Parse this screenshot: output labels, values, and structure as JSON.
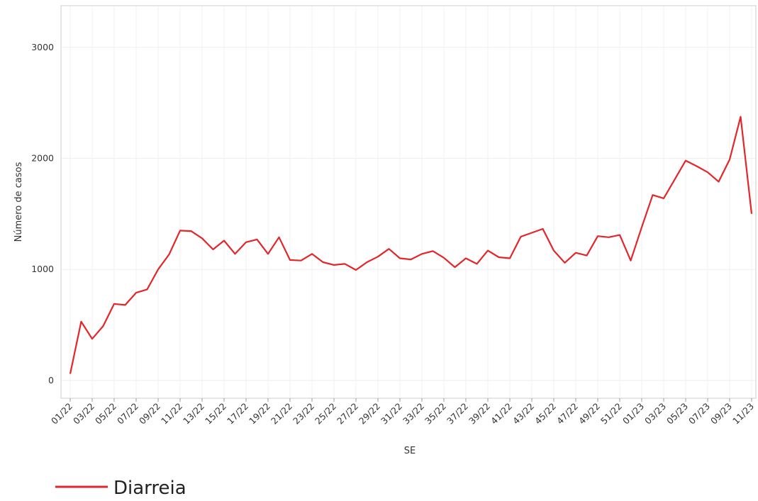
{
  "chart_data": {
    "type": "line",
    "categories": [
      "01/22",
      null,
      "03/22",
      null,
      "05/22",
      null,
      "07/22",
      null,
      "09/22",
      null,
      "11/22",
      null,
      "13/22",
      null,
      "15/22",
      null,
      "17/22",
      null,
      "19/22",
      null,
      "21/22",
      null,
      "23/22",
      null,
      "25/22",
      null,
      "27/22",
      null,
      "29/22",
      null,
      "31/22",
      null,
      "33/22",
      null,
      "35/22",
      null,
      "37/22",
      null,
      "39/22",
      null,
      "41/22",
      null,
      "43/22",
      null,
      "45/22",
      null,
      "47/22",
      null,
      "49/22",
      null,
      "51/22",
      null,
      "01/23",
      null,
      "03/23",
      null,
      "05/23",
      null,
      "07/23",
      null,
      "09/23",
      null,
      "11/23"
    ],
    "series": [
      {
        "name": "Diarreia",
        "color": "#e3262a",
        "values": [
          60,
          530,
          375,
          490,
          690,
          680,
          790,
          820,
          1000,
          1135,
          1350,
          1345,
          1280,
          1180,
          1260,
          1140,
          1245,
          1270,
          1140,
          1290,
          1085,
          1080,
          1140,
          1065,
          1040,
          1050,
          995,
          1065,
          1115,
          1185,
          1100,
          1090,
          1140,
          1165,
          1105,
          1020,
          1100,
          1050,
          1170,
          1110,
          1100,
          1295,
          1330,
          1365,
          1170,
          1060,
          1150,
          1125,
          1300,
          1290,
          1310,
          1080,
          1380,
          1670,
          1640,
          1810,
          1980,
          1930,
          1875,
          1790,
          1990,
          2375,
          1500
        ]
      }
    ],
    "xlabel": "SE",
    "ylabel": "Número de casos",
    "ylim": [
      -160,
      3375
    ],
    "yticks": [
      0,
      1000,
      2000,
      3000
    ],
    "grid": true
  }
}
